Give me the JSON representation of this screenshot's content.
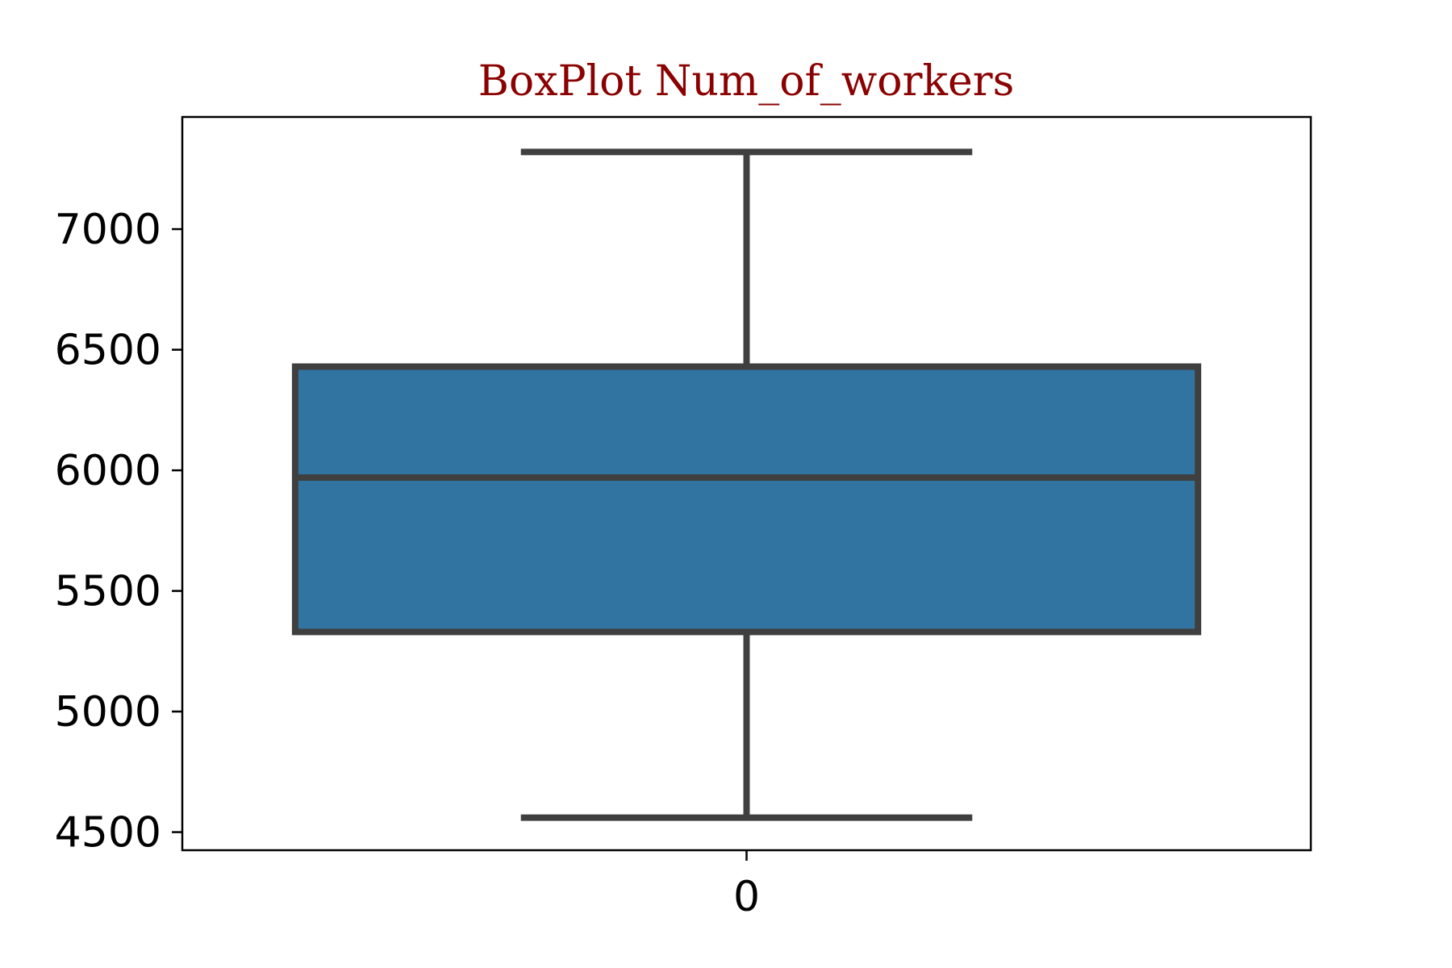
{
  "chart_data": {
    "type": "box",
    "title": "BoxPlot Num_of_workers",
    "xlabel": "",
    "ylabel": "",
    "categories": [
      "0"
    ],
    "boxes": [
      {
        "category": "0",
        "whisker_low": 4560,
        "q1": 5330,
        "median": 5970,
        "q3": 6430,
        "whisker_high": 7320
      }
    ],
    "ylim": [
      4425,
      7465
    ],
    "yticks": [
      4500,
      5000,
      5500,
      6000,
      6500,
      7000
    ],
    "ytick_labels": [
      "4500",
      "5000",
      "5500",
      "6000",
      "6500",
      "7000"
    ],
    "grid": false,
    "legend": "none"
  },
  "colors": {
    "title": "#8b0000",
    "box_fill": "#3274a1",
    "box_edge": "#3f3f3f",
    "axes": "#000000"
  }
}
